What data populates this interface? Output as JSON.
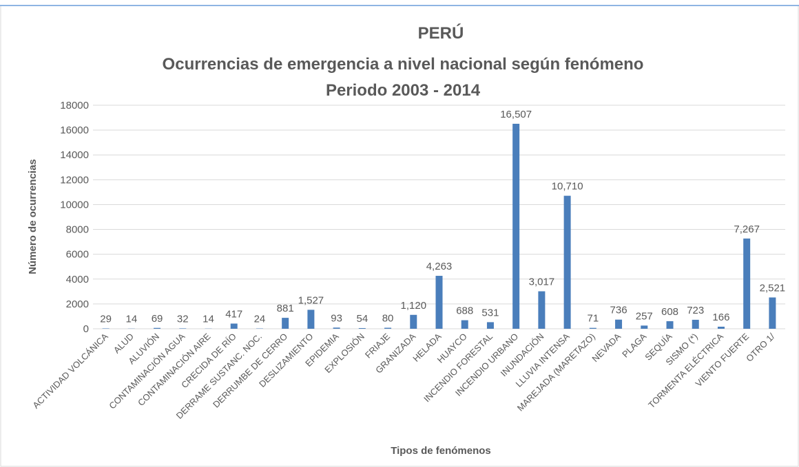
{
  "chart_data": {
    "type": "bar",
    "title": [
      "PERÚ",
      "Ocurrencias de emergencia a nivel nacional según fenómeno",
      "Periodo 2003 - 2014"
    ],
    "x_label": "Tipos de fenómenos",
    "y_label": "Número de ocurrencias",
    "categories": [
      "ACTIVIDAD VOLCÁNICA",
      "ALUD",
      "ALUVIÓN",
      "CONTAMINACIÓN AGUA",
      "CONTAMINACIÓN AIRE",
      "CRECIDA DE RÍO",
      "DERRAME SUSTANC. NOC.",
      "DERRUMBE DE CERRO",
      "DESLIZAMIENTO",
      "EPIDEMIA",
      "EXPLOSIÓN",
      "FRIAJE",
      "GRANIZADA",
      "HELADA",
      "HUAYCO",
      "INCENDIO FORESTAL",
      "INCENDIO URBANO",
      "INUNDACIÓN",
      "LLUVIA INTENSA",
      "MAREJADA (MARETAZO)",
      "NEVADA",
      "PLAGA",
      "SEQUÍA",
      "SISMO (*)",
      "TORMENTA ELÉCTRICA",
      "VIENTO FUERTE",
      "OTRO 1/"
    ],
    "values": [
      29,
      14,
      69,
      32,
      14,
      417,
      24,
      881,
      1527,
      93,
      54,
      80,
      1120,
      4263,
      688,
      531,
      16507,
      3017,
      10710,
      71,
      736,
      257,
      608,
      723,
      166,
      7267,
      2521
    ],
    "value_labels": [
      "29",
      "14",
      "69",
      "32",
      "14",
      "417",
      "24",
      "881",
      "1,527",
      "93",
      "54",
      "80",
      "1,120",
      "4,263",
      "688",
      "531",
      "16,507",
      "3,017",
      "10,710",
      "71",
      "736",
      "257",
      "608",
      "723",
      "166",
      "7,267",
      "2,521"
    ],
    "color": "#4a7ebb",
    "ylim": [
      0,
      18000
    ],
    "yticks": [
      0,
      2000,
      4000,
      6000,
      8000,
      10000,
      12000,
      14000,
      16000,
      18000
    ],
    "grid": true
  }
}
